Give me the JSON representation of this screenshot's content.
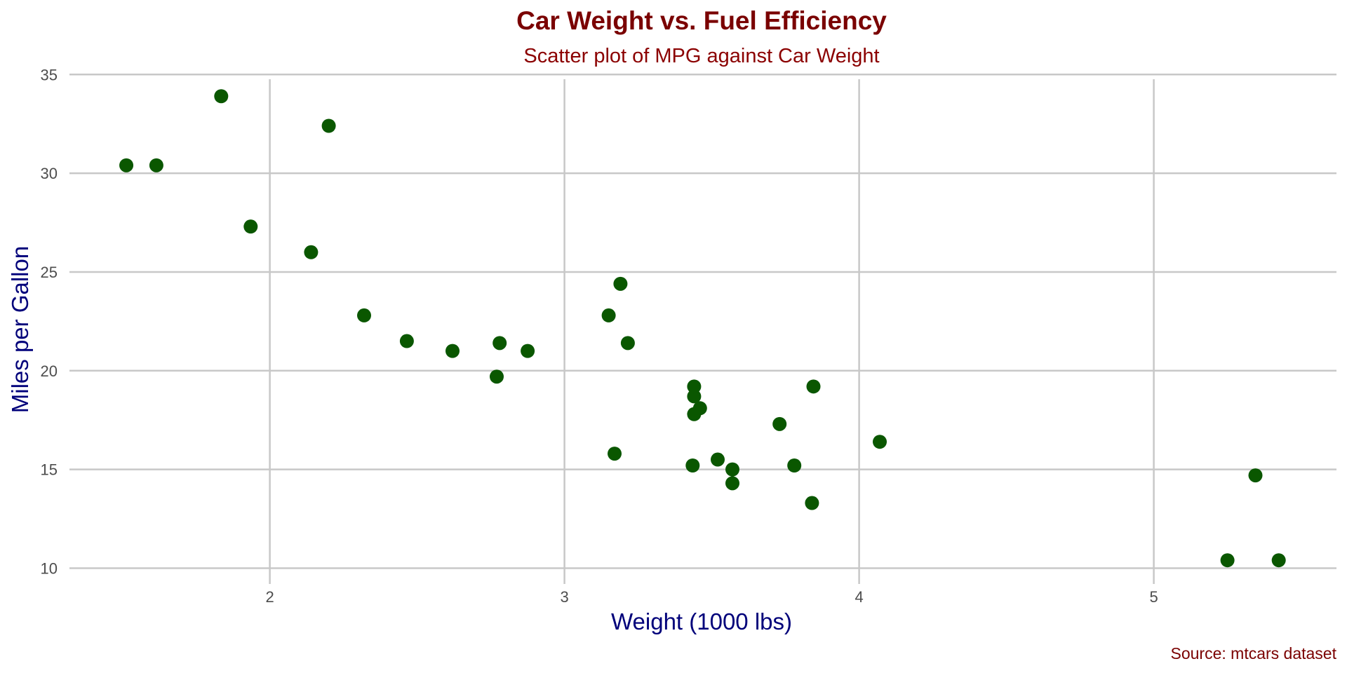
{
  "chart_data": {
    "type": "scatter",
    "title": "Car Weight vs. Fuel Efficiency",
    "subtitle": "Scatter plot of MPG against Car Weight",
    "xlabel": "Weight (1000 lbs)",
    "ylabel": "Miles per Gallon",
    "caption": "Source: mtcars dataset",
    "xlim": [
      1.32,
      5.62
    ],
    "ylim": [
      9.2,
      35.4
    ],
    "xticks": [
      2,
      3,
      4,
      5
    ],
    "yticks": [
      10,
      15,
      20,
      25,
      30,
      35
    ],
    "grid": true,
    "legend": false,
    "x": [
      2.62,
      2.875,
      2.32,
      3.215,
      3.44,
      3.46,
      3.57,
      3.19,
      3.15,
      3.44,
      3.44,
      4.07,
      3.73,
      3.78,
      5.25,
      5.424,
      5.345,
      2.2,
      1.615,
      1.835,
      2.465,
      3.52,
      3.435,
      3.84,
      3.845,
      1.935,
      2.14,
      1.513,
      3.17,
      2.77,
      3.57,
      2.78
    ],
    "y": [
      21.0,
      21.0,
      22.8,
      21.4,
      18.7,
      18.1,
      14.3,
      24.4,
      22.8,
      19.2,
      17.8,
      16.4,
      17.3,
      15.2,
      10.4,
      10.4,
      14.7,
      32.4,
      30.4,
      33.9,
      21.5,
      15.5,
      15.2,
      13.3,
      19.2,
      27.3,
      26.0,
      30.4,
      15.8,
      19.7,
      15.0,
      21.4
    ]
  },
  "colors": {
    "title": "#7a0000",
    "subtitle": "#8b0000",
    "axis_title": "#00007a",
    "point": "#0a5700",
    "grid": "#c8c8c8",
    "tick_text": "#4d4d4d",
    "caption": "#7a0000"
  }
}
